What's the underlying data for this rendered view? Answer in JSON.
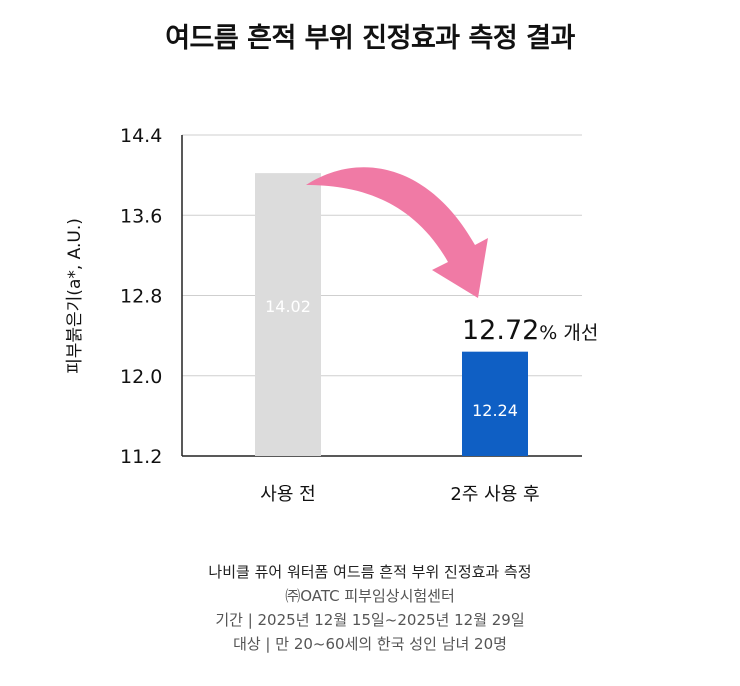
{
  "title": "여드름 흔적 부위 진정효과 측정 결과",
  "chart_data": {
    "type": "bar",
    "categories": [
      "사용 전",
      "2주 사용 후"
    ],
    "values": [
      14.02,
      12.24
    ],
    "value_labels": [
      "14.02",
      "12.24"
    ],
    "ylabel": "피부붉은기(a*, A.U.)",
    "ylim": [
      11.2,
      14.4
    ],
    "yticks": [
      "14.4",
      "13.6",
      "12.8",
      "12.0",
      "11.2"
    ],
    "grid": true,
    "bar_colors": [
      "#dcdcdc",
      "#0f5fc4"
    ],
    "annotation": {
      "number": "12.72",
      "suffix": "% 개선",
      "arrow_color": "#f07aa5"
    }
  },
  "footer": {
    "line1": "나비클 퓨어 워터폼  여드름 흔적 부위 진정효과 측정",
    "line2": "㈜OATC 피부임상시험센터",
    "line3": "기간  |  2025년 12월 15일~2025년 12월 29일",
    "line4": "대상  | 만 20~60세의 한국 성인 남녀 20명"
  }
}
